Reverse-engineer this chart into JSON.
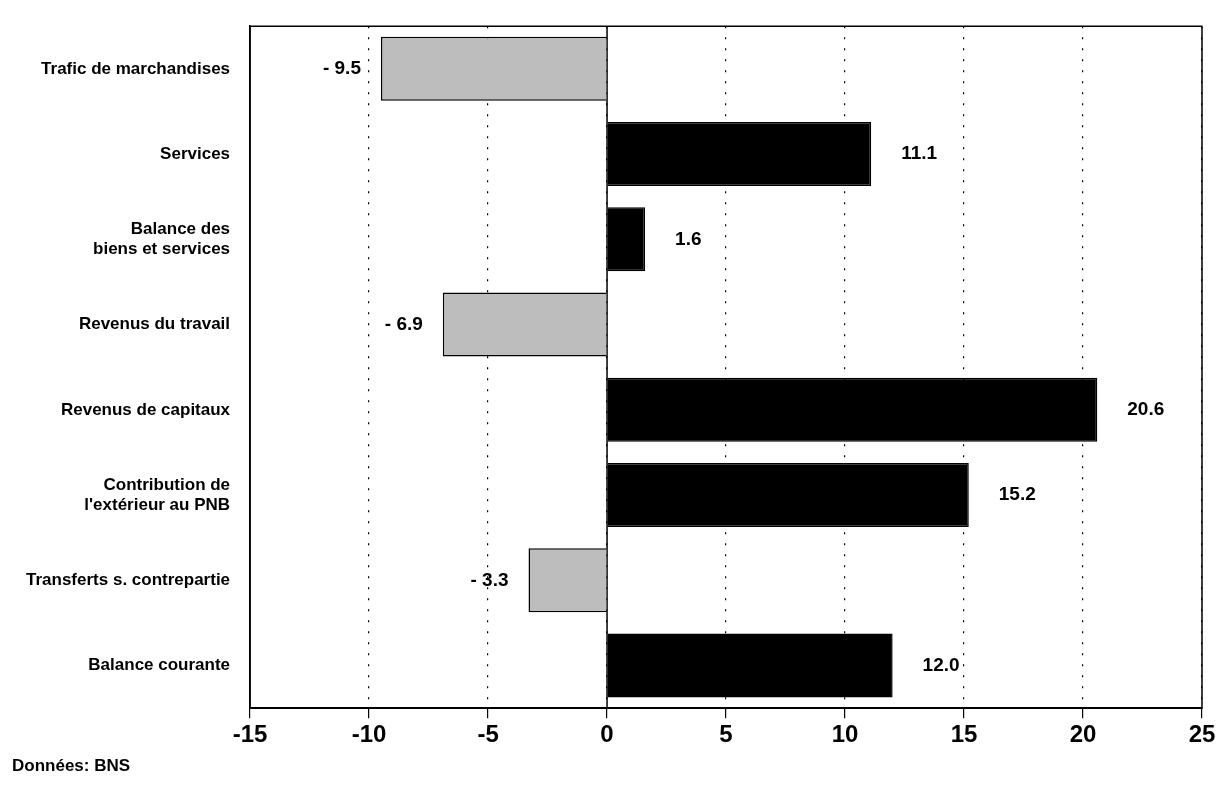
{
  "chart_data": {
    "type": "bar",
    "orientation": "horizontal",
    "categories": [
      "Trafic de marchandises",
      "Services",
      "Balance des\nbiens et services",
      "Revenus du travail",
      "Revenus de capitaux",
      "Contribution de\nl'extérieur au PNB",
      "Transferts s. contrepartie",
      "Balance courante"
    ],
    "values": [
      -9.5,
      11.1,
      1.6,
      -6.9,
      20.6,
      15.2,
      -3.3,
      12.0
    ],
    "colors": [
      "#bdbdbd",
      "#000000",
      "#000000",
      "#bdbdbd",
      "#000000",
      "#000000",
      "#bdbdbd",
      "#000000"
    ],
    "value_labels": [
      "- 9.5",
      "11.1",
      "1.6",
      "- 6.9",
      "20.6",
      "15.2",
      "- 3.3",
      "12.0"
    ],
    "xlim": [
      -15,
      25
    ],
    "xticks": [
      -15,
      -10,
      -5,
      0,
      5,
      10,
      15,
      20,
      25
    ],
    "grid": "x",
    "ref_lines": [
      {
        "axis": "x",
        "value": 0
      }
    ],
    "annotations": [
      "Données: BNS"
    ]
  }
}
